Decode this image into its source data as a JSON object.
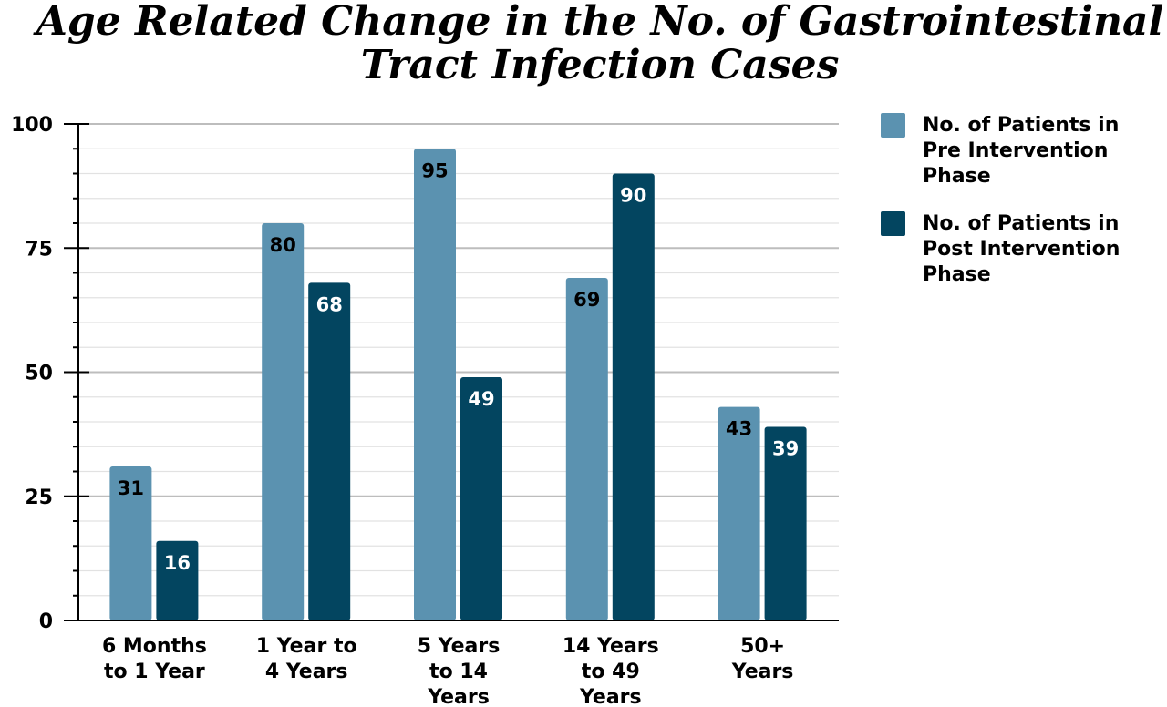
{
  "chart_data": {
    "type": "bar",
    "title": "Age Related Change in the No. of Gastrointestinal Tract Infection Cases",
    "title_lines": [
      "Age Related Change in the No. of Gastrointestinal",
      "Tract Infection Cases"
    ],
    "xlabel": "",
    "ylabel": "",
    "ylim": [
      0,
      100
    ],
    "yticks": [
      "0",
      "25",
      "50",
      "75",
      "100"
    ],
    "grid": true,
    "legend_position": "top-right",
    "categories": [
      [
        "6 Months",
        "to 1 Year"
      ],
      [
        "1 Year to",
        "4 Years"
      ],
      [
        "5 Years",
        "to 14",
        "Years"
      ],
      [
        "14 Years",
        "to 49",
        "Years"
      ],
      [
        "50+",
        "Years"
      ]
    ],
    "series": [
      {
        "name": "No. of Patients in Pre Intervention Phase",
        "name_lines": [
          "No. of Patients in",
          "Pre Intervention",
          "Phase"
        ],
        "color": "#5b92b0",
        "label_color": "#000000",
        "values": [
          31,
          80,
          95,
          69,
          43
        ]
      },
      {
        "name": "No. of Patients in Post Intervention Phase",
        "name_lines": [
          "No. of Patients in",
          "Post Intervention",
          "Phase"
        ],
        "color": "#034560",
        "label_color": "#ffffff",
        "values": [
          16,
          68,
          49,
          90,
          39
        ]
      }
    ]
  }
}
